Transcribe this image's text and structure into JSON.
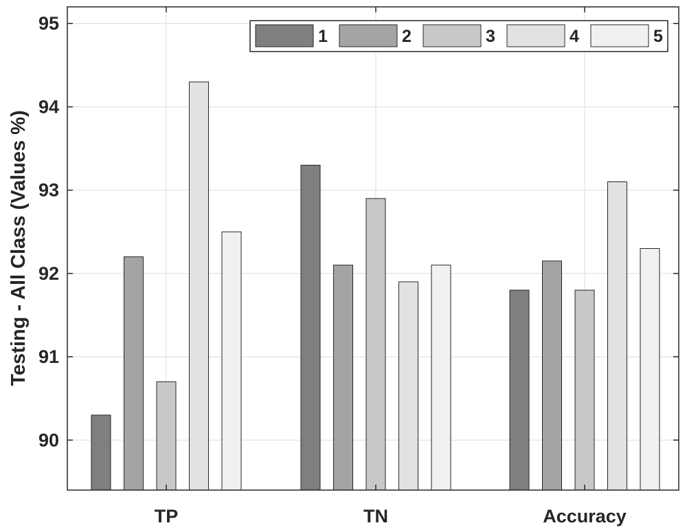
{
  "chart_data": {
    "type": "bar",
    "title": "",
    "xlabel": "",
    "ylabel": "Testing - All Class (Values %)",
    "categories": [
      "TP",
      "TN",
      "Accuracy"
    ],
    "ylim": [
      89.4,
      95.2
    ],
    "yticks": [
      90,
      91,
      92,
      93,
      94,
      95
    ],
    "grid": true,
    "legend_position": "top-right",
    "series": [
      {
        "name": "1",
        "values": [
          90.3,
          93.3,
          91.8
        ],
        "color": "#7f7f7f"
      },
      {
        "name": "2",
        "values": [
          92.2,
          92.1,
          92.15
        ],
        "color": "#a4a4a4"
      },
      {
        "name": "3",
        "values": [
          90.7,
          92.9,
          91.8
        ],
        "color": "#c8c8c8"
      },
      {
        "name": "4",
        "values": [
          94.3,
          91.9,
          93.1
        ],
        "color": "#e2e2e2"
      },
      {
        "name": "5",
        "values": [
          92.5,
          92.1,
          92.3
        ],
        "color": "#f1f1f1"
      }
    ]
  }
}
